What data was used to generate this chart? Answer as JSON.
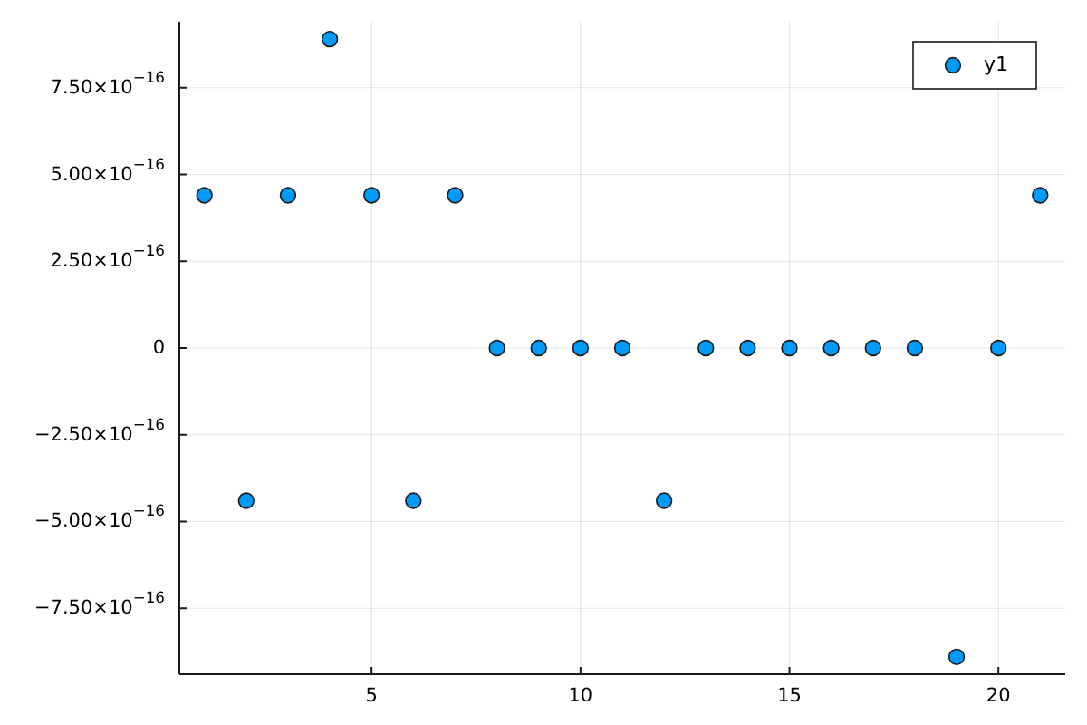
{
  "chart_data": {
    "type": "scatter",
    "x": [
      1,
      2,
      3,
      4,
      5,
      6,
      7,
      8,
      9,
      10,
      11,
      12,
      13,
      14,
      15,
      16,
      17,
      18,
      19,
      20,
      21
    ],
    "series": [
      {
        "name": "y1",
        "color": "#009af9",
        "values": [
          4.4e-16,
          -4.4e-16,
          4.4e-16,
          8.9e-16,
          4.4e-16,
          -4.4e-16,
          4.4e-16,
          0,
          0,
          0,
          0,
          -4.4e-16,
          0,
          0,
          0,
          0,
          0,
          0,
          -8.9e-16,
          0,
          4.4e-16
        ]
      }
    ],
    "xlim": [
      0.4,
      21.6
    ],
    "ylim": [
      -9.4e-16,
      9.4e-16
    ],
    "xticks": [
      5,
      10,
      15,
      20
    ],
    "yticks": [
      {
        "value": -7.5e-16,
        "label": "−7.50×10$^{−16}$"
      },
      {
        "value": -5e-16,
        "label": "−5.00×10$^{−16}$"
      },
      {
        "value": -2.5e-16,
        "label": "−2.50×10$^{−16}$"
      },
      0,
      {
        "value": 2.5e-16,
        "label": "2.50×10$^{−16}$"
      },
      {
        "value": 5e-16,
        "label": "5.00×10$^{−16}$"
      },
      {
        "value": 7.5e-16,
        "label": "7.50×10$^{−16}$"
      }
    ],
    "grid": true,
    "legend": "top right",
    "marker": "circle"
  }
}
